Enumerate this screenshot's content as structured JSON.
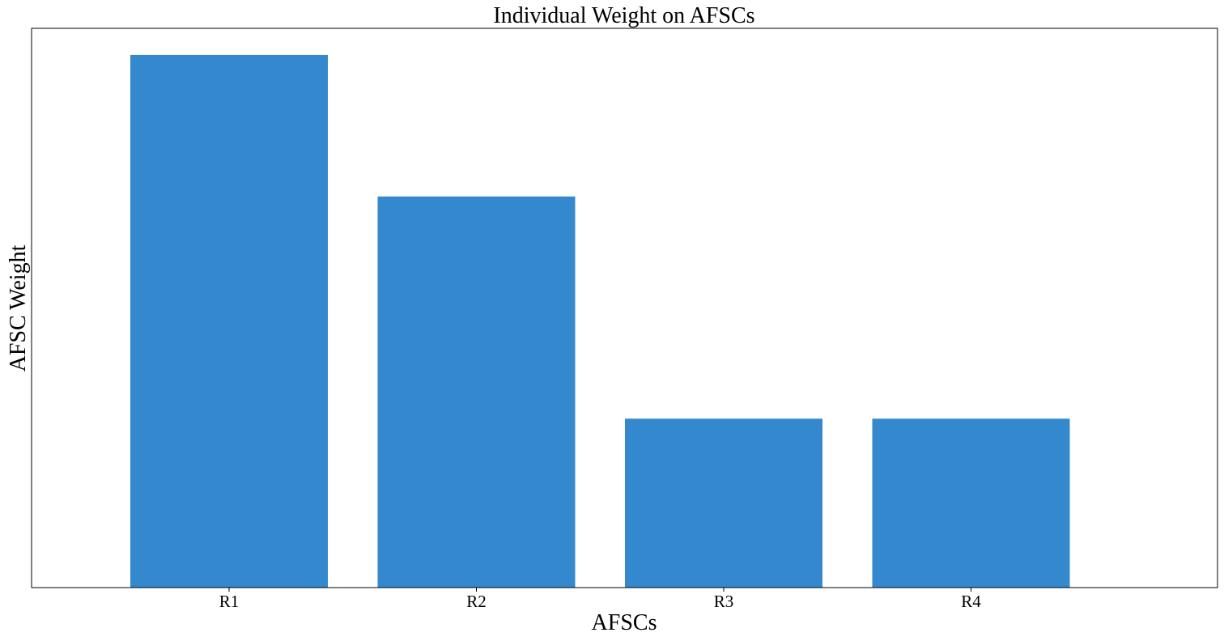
{
  "chart_data": {
    "type": "bar",
    "title": "Individual Weight on AFSCs",
    "xlabel": "AFSCs",
    "ylabel": "AFSC Weight",
    "categories": [
      "R1",
      "R2",
      "R3",
      "R4"
    ],
    "values": [
      0.35,
      0.257,
      0.111,
      0.111
    ],
    "ylim": [
      0,
      0.3675
    ],
    "y_ticks_shown": false,
    "grid": false,
    "legend": "none",
    "bar_color": "#3488ce"
  }
}
